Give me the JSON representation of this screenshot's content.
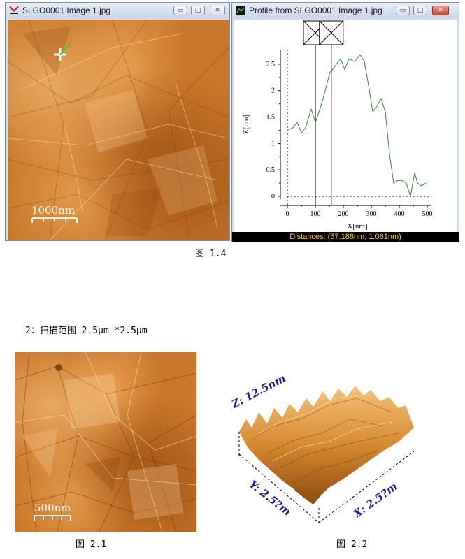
{
  "image_window": {
    "title": "SLGO0001 Image 1.jpg",
    "scale_bar": "1000nm",
    "buttons": [
      "minimize",
      "restore",
      "close"
    ]
  },
  "profile_window": {
    "title": "Profile from SLGO0001 Image 1.jpg",
    "status": "Distances: (57.188nm, 1.061nm)",
    "buttons": [
      "minimize",
      "restore",
      "close"
    ]
  },
  "chart_data": {
    "type": "line",
    "xlabel": "X[nm]",
    "ylabel": "Z[nm]",
    "xlim": [
      0,
      500
    ],
    "ylim": [
      0,
      2.75
    ],
    "xticks": [
      0,
      100,
      200,
      300,
      400,
      500
    ],
    "yticks": [
      0,
      0.5,
      1,
      1.5,
      2,
      2.5
    ],
    "x": [
      0,
      20,
      35,
      50,
      65,
      85,
      100,
      110,
      125,
      140,
      152,
      162,
      175,
      190,
      205,
      220,
      240,
      260,
      275,
      290,
      305,
      320,
      335,
      350,
      365,
      380,
      395,
      410,
      425,
      440,
      455,
      465,
      480,
      495
    ],
    "y": [
      1.25,
      1.3,
      1.4,
      1.2,
      1.3,
      1.65,
      1.4,
      1.55,
      1.8,
      2.1,
      2.35,
      2.4,
      2.5,
      2.6,
      2.4,
      2.6,
      2.55,
      2.68,
      2.55,
      2.1,
      1.6,
      1.7,
      1.85,
      1.6,
      0.8,
      0.25,
      0.3,
      0.3,
      0.25,
      0.0,
      0.45,
      0.25,
      0.2,
      0.25
    ],
    "color": "#2e8b2e",
    "cursor_lines_x": [
      100,
      157
    ]
  },
  "captions": {
    "fig_1_4": "图 1.4",
    "section_2": "2：扫描范围 2.5μm *2.5μm",
    "fig_2_1": "图 2.1",
    "fig_2_2": "图 2.2"
  },
  "fig_2_1": {
    "scale_bar": "500nm"
  },
  "fig_2_2": {
    "z_label": "Z: 12.5nm",
    "y_label": "Y: 2.5?m",
    "x_label": "X: 2.5?m"
  }
}
